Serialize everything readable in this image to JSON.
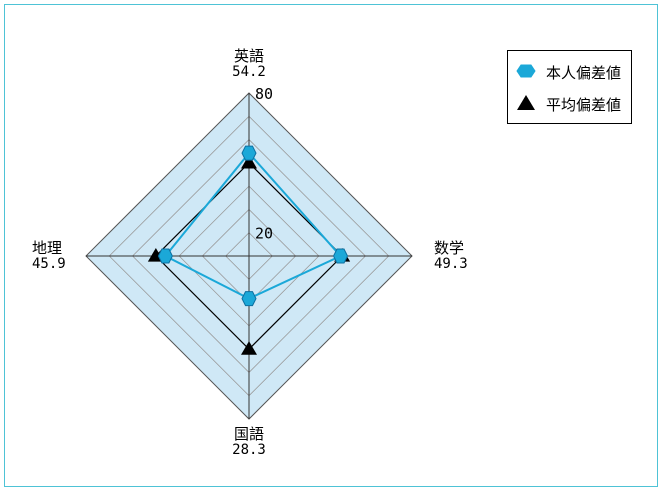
{
  "chart_data": {
    "type": "radar",
    "axes": [
      {
        "name": "英語",
        "value_label": "54.2"
      },
      {
        "name": "数学",
        "value_label": "49.3"
      },
      {
        "name": "国語",
        "value_label": "28.3"
      },
      {
        "name": "地理",
        "value_label": "45.9"
      }
    ],
    "scale_min": 10,
    "scale_max": 80,
    "tick_labels": [
      "80",
      "20"
    ],
    "grid": true,
    "series": [
      {
        "name": "本人偏差値",
        "values": [
          54.2,
          49.3,
          28.3,
          45.9
        ],
        "color": "#1ba8d8",
        "marker": "hexagon"
      },
      {
        "name": "平均偏差値",
        "values": [
          50,
          50,
          50,
          50
        ],
        "color": "#000000",
        "marker": "triangle"
      }
    ],
    "legend_position": "top-right",
    "fill_color": "#cfe8f6",
    "frame_color": "#4ec3d6"
  }
}
